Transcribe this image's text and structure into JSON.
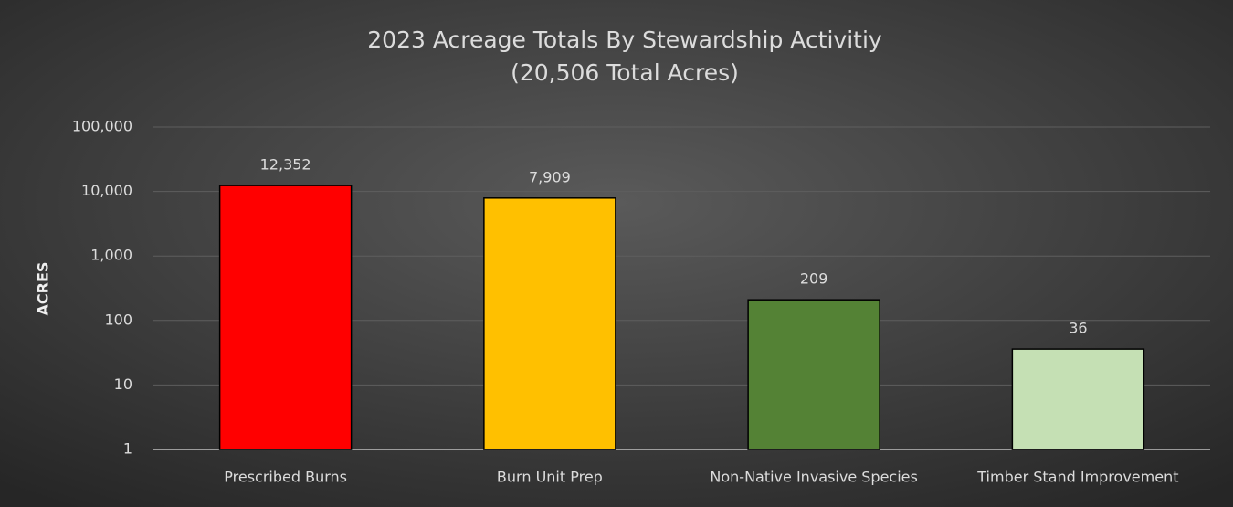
{
  "chart_data": {
    "type": "bar",
    "title": "2023 Acreage Totals By Stewardship Activitiy",
    "subtitle": "(20,506 Total Acres)",
    "y_label": "ACRES",
    "categories": [
      "Prescribed Burns",
      "Burn Unit Prep",
      "Non-Native Invasive Species",
      "Timber Stand Improvement"
    ],
    "values": [
      12352,
      7909,
      209,
      36
    ],
    "value_labels": [
      "12,352",
      "7,909",
      "209",
      "36"
    ],
    "colors": [
      "#ff0000",
      "#ffc000",
      "#548235",
      "#c5e0b4"
    ],
    "log_scale": true,
    "ylim": [
      1,
      100000
    ],
    "yticks": [
      1,
      10,
      100,
      {
        "value": 1000,
        "label": "1,000"
      },
      {
        "value": 10000,
        "label": "10,000"
      },
      {
        "value": 100000,
        "label": "100,000"
      }
    ],
    "grid": true
  }
}
